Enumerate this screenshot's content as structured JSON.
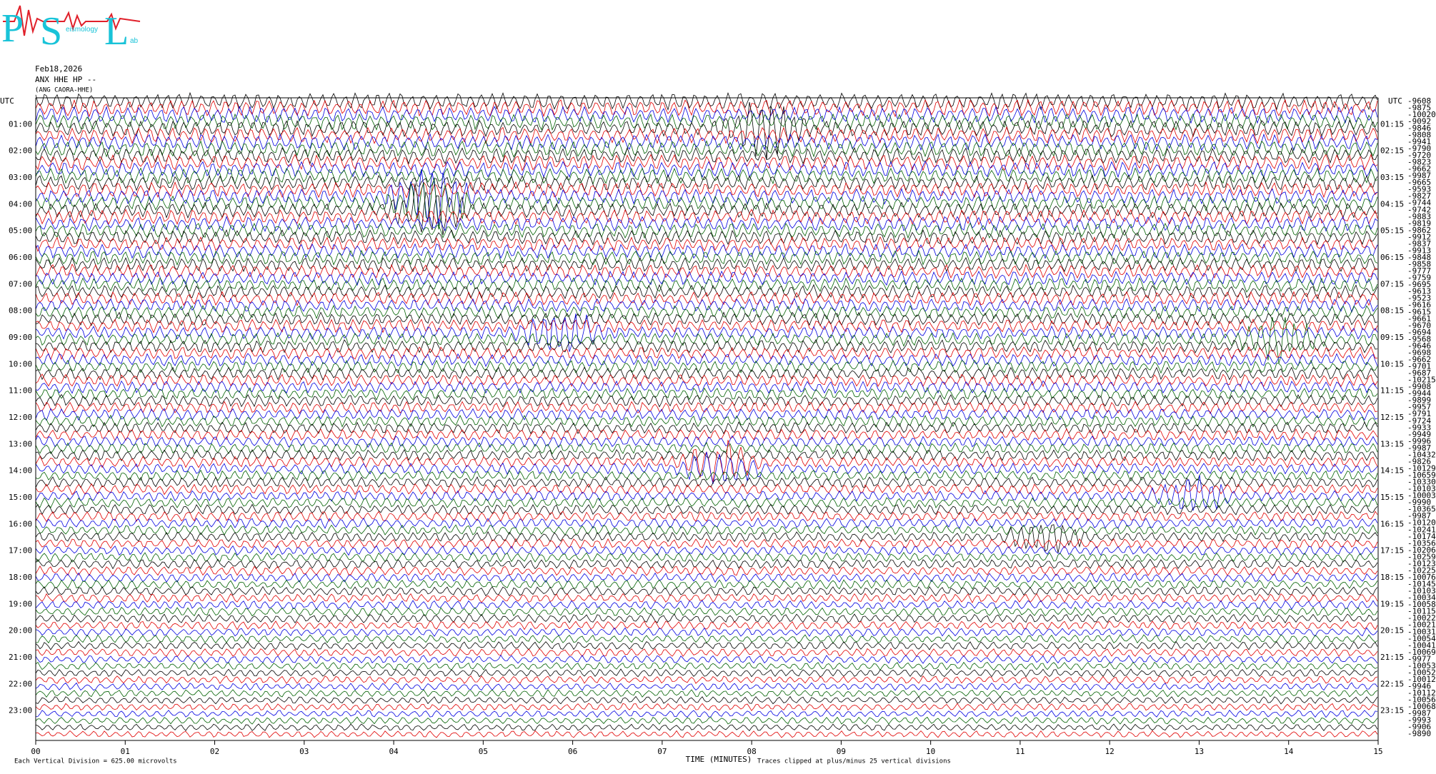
{
  "logo": {
    "letters": [
      "P",
      "S",
      "L"
    ],
    "words": [
      "eismology",
      "ab"
    ]
  },
  "header": {
    "date": "Feb18,2026",
    "station": "ANX HHE HP --",
    "name": "(ANG CAORA-HHE)"
  },
  "left_axis": {
    "title": "UTC",
    "labels": [
      "01:00",
      "02:00",
      "03:00",
      "04:00",
      "05:00",
      "06:00",
      "07:00",
      "08:00",
      "09:00",
      "10:00",
      "11:00",
      "12:00",
      "13:00",
      "14:00",
      "15:00",
      "16:00",
      "17:00",
      "18:00",
      "19:00",
      "20:00",
      "21:00",
      "22:00",
      "23:00"
    ]
  },
  "right_axis": {
    "title": "UTC",
    "labels": [
      "01:15",
      "02:15",
      "03:15",
      "04:15",
      "05:15",
      "06:15",
      "07:15",
      "08:15",
      "09:15",
      "10:15",
      "11:15",
      "12:15",
      "13:15",
      "14:15",
      "15:15",
      "16:15",
      "17:15",
      "18:15",
      "19:15",
      "20:15",
      "21:15",
      "22:15",
      "23:15"
    ]
  },
  "offsets": [
    "-9608",
    "-9875",
    "-10020",
    "-9092",
    "-9846",
    "-9808",
    "-9941",
    "-9790",
    "-9720",
    "-9823",
    "-9662",
    "-9987",
    "-9665",
    "-9593",
    "-9827",
    "-9744",
    "-9742",
    "-9883",
    "-9819",
    "-9862",
    "-9912",
    "-9837",
    "-9913",
    "-9848",
    "-9858",
    "-9777",
    "-9759",
    "-9695",
    "-9613",
    "-9523",
    "-9616",
    "-9615",
    "-9661",
    "-9670",
    "-9694",
    "-9568",
    "-9646",
    "-9698",
    "-9662",
    "-9701",
    "-9687",
    "-10215",
    "-9908",
    "-9944",
    "-9899",
    "-9957",
    "-9791",
    "-9724",
    "-9933",
    "-9949",
    "-9996",
    "-9987",
    "-10432",
    "-9826",
    "-10129",
    "-10659",
    "-10330",
    "-10103",
    "-10003",
    "-9990",
    "-10365",
    "-9987",
    "-10120",
    "-10241",
    "-10174",
    "-10356",
    "-10206",
    "-10259",
    "-10123",
    "-10225",
    "-10076",
    "-10145",
    "-10103",
    "-10034",
    "-10058",
    "-10115",
    "-10022",
    "-10021",
    "-10031",
    "-10054",
    "-10041",
    "-10069",
    "-9977",
    "-10053",
    "-10052",
    "-10012",
    "-9946",
    "-10112",
    "-10056",
    "-10068",
    "-9987",
    "-9993",
    "-9906",
    "-9890"
  ],
  "x_axis": {
    "ticks": [
      "00",
      "01",
      "02",
      "03",
      "04",
      "05",
      "06",
      "07",
      "08",
      "09",
      "10",
      "11",
      "12",
      "13",
      "14",
      "15"
    ],
    "title": "TIME (MINUTES)"
  },
  "footer": {
    "left": "Each Vertical Division =  625.00 microvolts",
    "right": "Traces clipped at plus/minus 25 vertical divisions"
  }
}
